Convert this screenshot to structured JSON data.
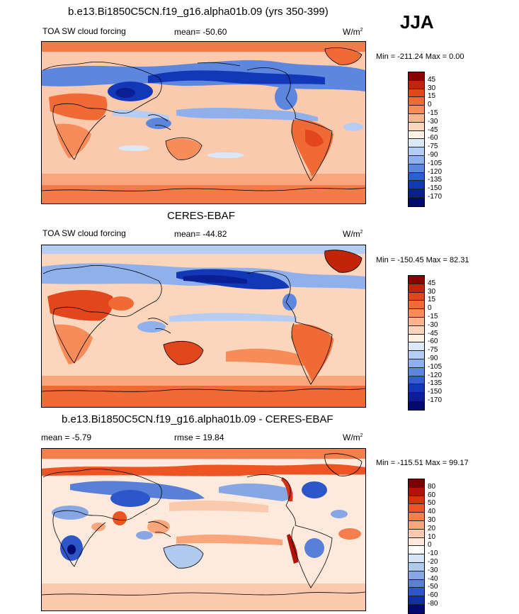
{
  "season": "JJA",
  "panels": [
    {
      "title": "b.e13.Bi1850C5CN.f19_g16.alpha01b.09 (yrs 350-399)",
      "left_label": "TOA SW cloud forcing",
      "center_label": "mean= -50.60",
      "units": "W/m",
      "units_sup": "2",
      "minmax": "Min = -211.24 Max =   0.00",
      "colorbar": {
        "labels": [
          "45",
          "30",
          "15",
          "0",
          "-15",
          "-30",
          "-45",
          "-60",
          "-75",
          "-90",
          "-105",
          "-120",
          "-135",
          "-150",
          "-170"
        ],
        "colors": [
          "#8b0000",
          "#c0250a",
          "#e2461c",
          "#f06a35",
          "#f78c59",
          "#fbb58e",
          "#fcd6bc",
          "#fdf1e6",
          "#dbe8f8",
          "#b5cdf2",
          "#8fb0ea",
          "#5d86de",
          "#2f5ed0",
          "#1238b8",
          "#0a1f94",
          "#020a6e"
        ]
      }
    },
    {
      "title": "CERES-EBAF",
      "left_label": "TOA SW cloud forcing",
      "center_label": "mean= -44.82",
      "units": "W/m",
      "units_sup": "2",
      "minmax": "Min = -150.45 Max =  82.31",
      "colorbar": {
        "labels": [
          "45",
          "30",
          "15",
          "0",
          "-15",
          "-30",
          "-45",
          "-60",
          "-75",
          "-90",
          "-105",
          "-120",
          "-135",
          "-150",
          "-170"
        ],
        "colors": [
          "#8b0000",
          "#c0250a",
          "#e2461c",
          "#f06a35",
          "#f78c59",
          "#fbb58e",
          "#fcd6bc",
          "#fdf1e6",
          "#dbe8f8",
          "#b5cdf2",
          "#8fb0ea",
          "#5d86de",
          "#2f5ed0",
          "#1238b8",
          "#0a1f94",
          "#020a6e"
        ]
      }
    },
    {
      "title": "b.e13.Bi1850C5CN.f19_g16.alpha01b.09 - CERES-EBAF",
      "left_label": "mean =  -5.79",
      "center_label": "rmse =  19.84",
      "units": "W/m",
      "units_sup": "2",
      "minmax": "Min = -115.51 Max =  99.17",
      "colorbar": {
        "labels": [
          "80",
          "60",
          "50",
          "40",
          "30",
          "20",
          "10",
          "0",
          "-10",
          "-20",
          "-30",
          "-40",
          "-50",
          "-60",
          "-80"
        ],
        "colors": [
          "#7a0000",
          "#b01208",
          "#d8300f",
          "#ec5423",
          "#f57f4c",
          "#f9a67c",
          "#fbcaae",
          "#fdeadc",
          "#ffffff",
          "#d6e4f7",
          "#b0c9ef",
          "#86a7e4",
          "#5880d8",
          "#2d57c8",
          "#1130a8",
          "#020a6e"
        ]
      }
    }
  ]
}
